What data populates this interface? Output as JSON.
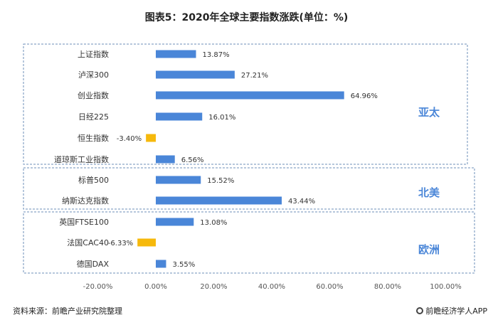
{
  "title": "图表5：2020年全球主要指数涨跌(单位：%)",
  "footer": {
    "source": "资料来源：前瞻产业研究院整理",
    "brand": "前瞻经济学人APP"
  },
  "colors": {
    "positive": "#4a86d8",
    "negative": "#f6b90c",
    "group_label": "#4a86d8",
    "frame": "#6c8fb8"
  },
  "chart_data": {
    "type": "bar",
    "orientation": "horizontal",
    "categories": [
      "上证指数",
      "泸深300",
      "创业指数",
      "日经225",
      "恒生指数",
      "道琼斯工业指数",
      "标普500",
      "纳斯达克指数",
      "英国FTSE100",
      "法国CAC40",
      "德国DAX"
    ],
    "values": [
      13.87,
      27.21,
      64.96,
      16.01,
      -3.4,
      6.56,
      15.52,
      43.44,
      13.08,
      -6.33,
      3.55
    ],
    "value_labels": [
      "13.87%",
      "27.21%",
      "64.96%",
      "16.01%",
      "-3.40%",
      "6.56%",
      "15.52%",
      "43.44%",
      "13.08%",
      "-6.33%",
      "3.55%"
    ],
    "groups": [
      {
        "name": "亚太",
        "count": 6
      },
      {
        "name": "北美",
        "count": 2
      },
      {
        "name": "欧洲",
        "count": 3
      }
    ],
    "xlim": [
      -20,
      100
    ],
    "x_ticks": [
      -20,
      0,
      20,
      40,
      60,
      80,
      100
    ],
    "x_tick_labels": [
      "-20.00%",
      "0.00%",
      "20.00%",
      "40.00%",
      "60.00%",
      "80.00%",
      "100.00%"
    ],
    "legend": "none",
    "grid": false
  }
}
